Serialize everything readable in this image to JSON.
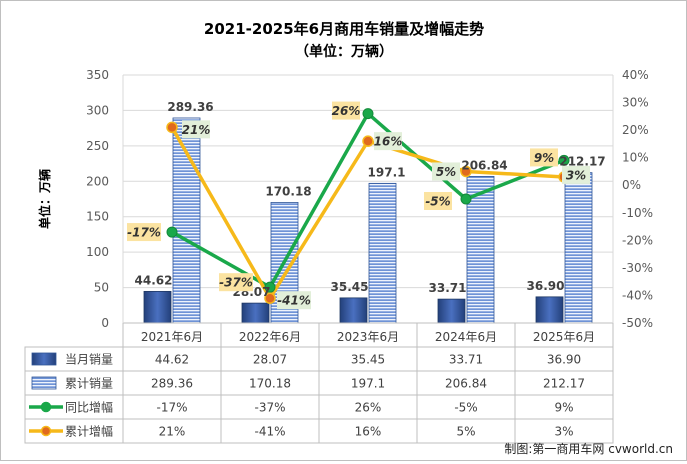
{
  "chart_data": {
    "type": "bar+line",
    "title": "2021-2025年6月商用车销量及增幅走势",
    "subtitle": "（单位：万辆）",
    "ylabel": "单位：万辆",
    "ylim": [
      0,
      350
    ],
    "yticks": [
      "0",
      "50",
      "100",
      "150",
      "200",
      "250",
      "300",
      "350"
    ],
    "y2lim": [
      -50,
      40
    ],
    "y2ticks": [
      "-50%",
      "-40%",
      "-30%",
      "-20%",
      "-10%",
      "0%",
      "10%",
      "20%",
      "30%",
      "40%"
    ],
    "categories": [
      "2021年6月",
      "2022年6月",
      "2023年6月",
      "2024年6月",
      "2025年6月"
    ],
    "series": [
      {
        "name": "当月销量",
        "kind": "bar",
        "axis": "left",
        "color": "#2f5597",
        "values": [
          44.62,
          28.07,
          35.45,
          33.71,
          36.9
        ],
        "labels": [
          "44.62",
          "28.07",
          "35.45",
          "33.71",
          "36.90"
        ]
      },
      {
        "name": "累计销量",
        "kind": "bar",
        "axis": "left",
        "color": "#5b7fc7",
        "values": [
          289.36,
          170.18,
          197.1,
          206.84,
          212.17
        ],
        "labels": [
          "289.36",
          "170.18",
          "197.1",
          "206.84",
          "212.17"
        ]
      },
      {
        "name": "同比增幅",
        "kind": "line",
        "axis": "right",
        "color": "#1aa84a",
        "values": [
          -17,
          -37,
          26,
          -5,
          9
        ],
        "labels": [
          "-17%",
          "-37%",
          "26%",
          "-5%",
          "9%"
        ]
      },
      {
        "name": "累计增幅",
        "kind": "line",
        "axis": "right",
        "color": "#f6b91a",
        "values": [
          21,
          -41,
          16,
          5,
          3
        ],
        "labels": [
          "21%",
          "-41%",
          "16%",
          "5%",
          "3%"
        ]
      }
    ],
    "credit": "制图:第一商用车网 cvworld.cn"
  }
}
